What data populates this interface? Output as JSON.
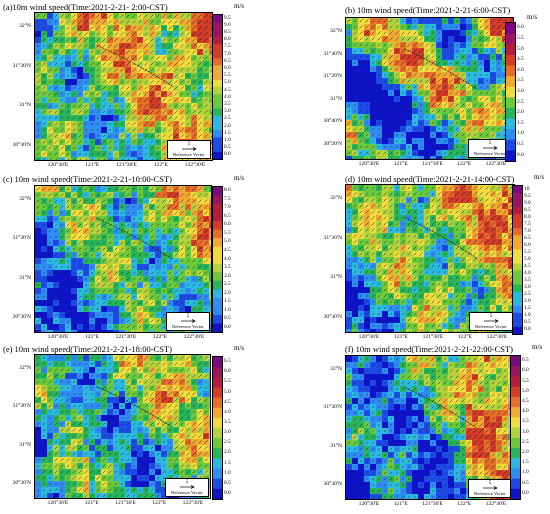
{
  "reference_label": "Reference Vector",
  "reference_value": "5",
  "colors": [
    "#0f14c8",
    "#1e4be6",
    "#2f8cf2",
    "#2bb9e0",
    "#28b45a",
    "#6cc83c",
    "#b4d23c",
    "#f0dc3c",
    "#f0aa32",
    "#e66e28",
    "#d23c28",
    "#b41e3c",
    "#9b1464",
    "#7a0a82"
  ],
  "panels": [
    {
      "title": "(a)10m wind speed(Time:2021-2-21- 2:00-CST)",
      "unit": "m/s",
      "lat_ticks": [
        "32°N",
        "31°30'N",
        "31°N",
        "30°30'N"
      ],
      "lon_ticks": [
        "120°30'E",
        "121°E",
        "121°30'E",
        "122°E",
        "122°30'E"
      ],
      "colorbar_labels": [
        "9.5",
        "9.0",
        "8.5",
        "8.0",
        "7.5",
        "7.0",
        "6.5",
        "6.0",
        "5.5",
        "5.0",
        "4.5",
        "4.0",
        "3.5",
        "3.0",
        "2.5",
        "2.0",
        "1.5",
        "1.0",
        "0.5",
        "0.0"
      ]
    },
    {
      "title": "(b) 10m wind speed(Time:2021-2-21-6:00-CST)",
      "unit": "m/s",
      "lat_ticks": [
        "32°N",
        "31°40'N",
        "31°20'N",
        "31°N",
        "30°40'N",
        "30°20'N"
      ],
      "lon_ticks": [
        "120°30'E",
        "121°E",
        "121°30'E",
        "122°E",
        "122°30'E"
      ],
      "colorbar_labels": [
        "6.0",
        "5.5",
        "5.0",
        "4.5",
        "4.0",
        "3.5",
        "3.0",
        "2.5",
        "2.0",
        "1.5",
        "1.0",
        "0.5",
        "0.0"
      ]
    },
    {
      "title": "(c) 10m wind speed(Time:2021-2-21-10:00-CST)",
      "unit": "m/s",
      "lat_ticks": [
        "32°N",
        "31°30'N",
        "31°N",
        "30°30'N"
      ],
      "lon_ticks": [
        "120°30'E",
        "121°E",
        "121°30'E",
        "122°E",
        "122°30'E"
      ],
      "colorbar_labels": [
        "8.0",
        "7.5",
        "7.0",
        "6.5",
        "6.0",
        "5.5",
        "5.0",
        "4.5",
        "4.0",
        "3.5",
        "3.0",
        "2.5",
        "2.0",
        "1.5",
        "1.0",
        "0.5",
        "0.0"
      ]
    },
    {
      "title": "(d) 10m wind speed(Time:2021-2-21-14:00-CST)",
      "unit": "m/s",
      "lat_ticks": [
        "32°N",
        "31°30'N",
        "31°N",
        "30°30'N"
      ],
      "lon_ticks": [
        "120°30'E",
        "121°E",
        "121°30'E",
        "122°E",
        "122°30'E"
      ],
      "colorbar_labels": [
        "10",
        "9.5",
        "9.0",
        "8.5",
        "8.0",
        "7.5",
        "7.0",
        "6.5",
        "6.0",
        "5.5",
        "5.0",
        "4.5",
        "4.0",
        "3.5",
        "3.0",
        "2.5",
        "2.0",
        "1.5",
        "1.0",
        "0.5",
        "0.0"
      ]
    },
    {
      "title": "(e) 10m wind speed(Time:2021-2-21-18:00-CST)",
      "unit": "m/s",
      "lat_ticks": [
        "32°N",
        "31°30'N",
        "31°N",
        "30°30'N"
      ],
      "lon_ticks": [
        "120°30'E",
        "121°E",
        "121°30'E",
        "122°E",
        "122°30'E"
      ],
      "colorbar_labels": [
        "6.5",
        "6.0",
        "5.5",
        "5.0",
        "4.5",
        "4.0",
        "3.5",
        "3.0",
        "2.5",
        "2.0",
        "1.5",
        "1.0",
        "0.5",
        "0.0"
      ]
    },
    {
      "title": "(f) 10m wind speed(Time:2021-2-21-22:00-CST)",
      "unit": "m/s",
      "lat_ticks": [
        "32°N",
        "31°30'N",
        "31°N",
        "30°30'N"
      ],
      "lon_ticks": [
        "120°30'E",
        "121°E",
        "121°30'E",
        "122°E",
        "122°30'E"
      ],
      "colorbar_labels": [
        "6.5",
        "6.0",
        "5.5",
        "5.0",
        "4.5",
        "4.0",
        "3.5",
        "3.0",
        "2.5",
        "2.0",
        "1.5",
        "1.0",
        "0.5",
        "0.0"
      ]
    }
  ]
}
